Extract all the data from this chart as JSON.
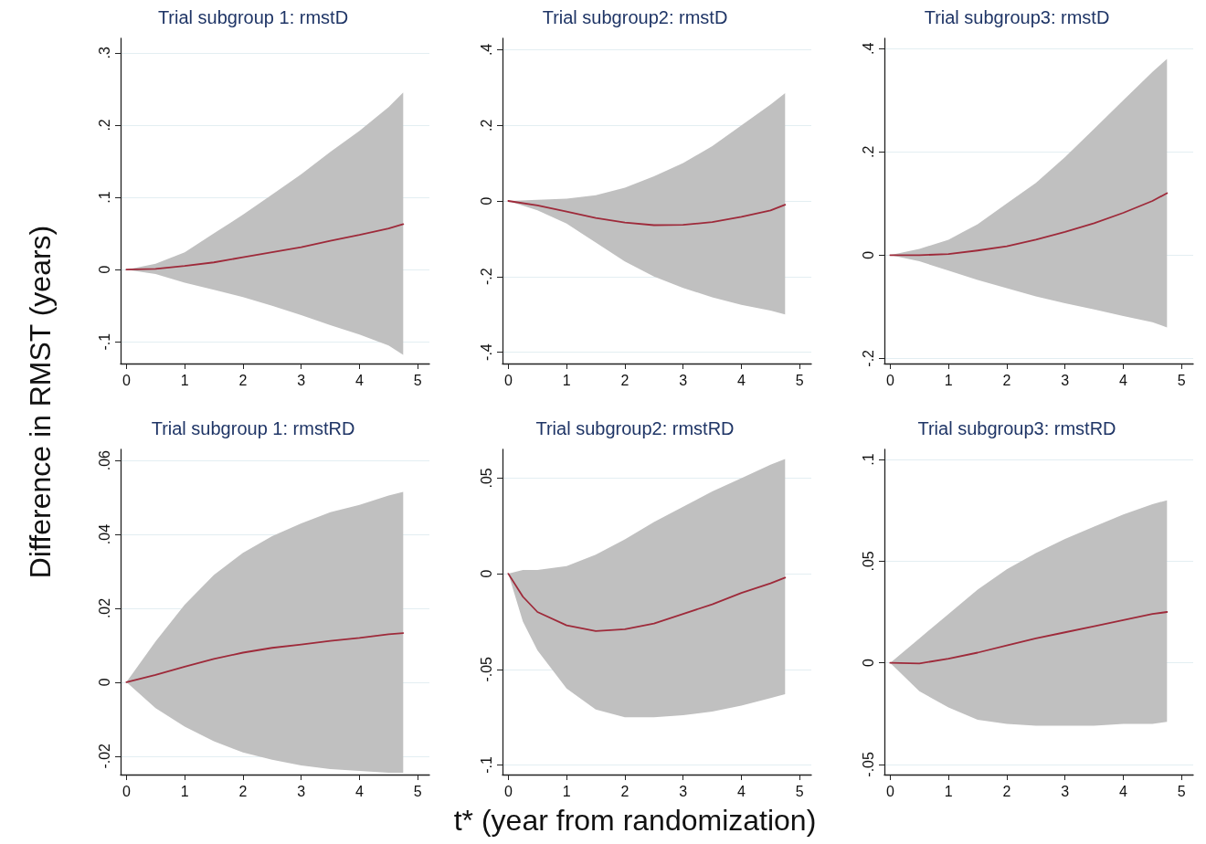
{
  "chart_data": [
    {
      "type": "line",
      "title": "Trial subgroup 1: rmstD",
      "ylabel": "Difference in RMST (years)",
      "x": [
        0,
        0.5,
        1,
        1.5,
        2,
        2.5,
        3,
        3.5,
        4,
        4.5,
        4.75
      ],
      "xlim": [
        -0.1,
        5.2
      ],
      "xticks": [
        0,
        1,
        2,
        3,
        4,
        5
      ],
      "ylim": [
        -0.13,
        0.32
      ],
      "yticks": [
        {
          "value": -0.1,
          "label": "-.1"
        },
        {
          "value": 0,
          "label": "0"
        },
        {
          "value": 0.1,
          "label": ".1"
        },
        {
          "value": 0.2,
          "label": ".2"
        },
        {
          "value": 0.3,
          "label": ".3"
        }
      ],
      "grid": "y",
      "series": [
        {
          "color": "#9e2a3a",
          "values": [
            0,
            0.001,
            0.005,
            0.01,
            0.017,
            0.024,
            0.031,
            0.04,
            0.048,
            0.057,
            0.063
          ],
          "lower": [
            0,
            -0.006,
            -0.018,
            -0.028,
            -0.038,
            -0.05,
            -0.063,
            -0.077,
            -0.09,
            -0.105,
            -0.118
          ],
          "upper": [
            0,
            0.008,
            0.024,
            0.05,
            0.076,
            0.104,
            0.132,
            0.163,
            0.192,
            0.225,
            0.245
          ]
        }
      ]
    },
    {
      "type": "line",
      "title": "Trial subgroup2: rmstD",
      "x": [
        0,
        0.5,
        1,
        1.5,
        2,
        2.5,
        3,
        3.5,
        4,
        4.5,
        4.75
      ],
      "xlim": [
        -0.1,
        5.2
      ],
      "xticks": [
        0,
        1,
        2,
        3,
        4,
        5
      ],
      "ylim": [
        -0.43,
        0.43
      ],
      "yticks": [
        {
          "value": -0.4,
          "label": "-.4"
        },
        {
          "value": -0.2,
          "label": "-.2"
        },
        {
          "value": 0,
          "label": "0"
        },
        {
          "value": 0.2,
          "label": ".2"
        },
        {
          "value": 0.4,
          "label": ".4"
        }
      ],
      "grid": "y",
      "series": [
        {
          "color": "#9e2a3a",
          "values": [
            0,
            -0.012,
            -0.028,
            -0.045,
            -0.057,
            -0.064,
            -0.063,
            -0.056,
            -0.042,
            -0.025,
            -0.01
          ],
          "lower": [
            0,
            -0.025,
            -0.06,
            -0.11,
            -0.16,
            -0.2,
            -0.23,
            -0.255,
            -0.275,
            -0.29,
            -0.3
          ],
          "upper": [
            0,
            0.003,
            0.006,
            0.015,
            0.035,
            0.065,
            0.1,
            0.145,
            0.2,
            0.255,
            0.285
          ]
        }
      ]
    },
    {
      "type": "line",
      "title": "Trial subgroup3: rmstD",
      "x": [
        0,
        0.5,
        1,
        1.5,
        2,
        2.5,
        3,
        3.5,
        4,
        4.5,
        4.75
      ],
      "xlim": [
        -0.1,
        5.2
      ],
      "xticks": [
        0,
        1,
        2,
        3,
        4,
        5
      ],
      "ylim": [
        -0.21,
        0.42
      ],
      "yticks": [
        {
          "value": -0.2,
          "label": "-.2"
        },
        {
          "value": 0,
          "label": "0"
        },
        {
          "value": 0.2,
          "label": ".2"
        },
        {
          "value": 0.4,
          "label": ".4"
        }
      ],
      "grid": "y",
      "series": [
        {
          "color": "#9e2a3a",
          "values": [
            0,
            0,
            0.002,
            0.009,
            0.017,
            0.03,
            0.045,
            0.062,
            0.082,
            0.105,
            0.12
          ],
          "lower": [
            0,
            -0.012,
            -0.03,
            -0.048,
            -0.064,
            -0.08,
            -0.093,
            -0.105,
            -0.118,
            -0.13,
            -0.14
          ],
          "upper": [
            0,
            0.012,
            0.03,
            0.06,
            0.1,
            0.14,
            0.19,
            0.245,
            0.3,
            0.355,
            0.38
          ]
        }
      ]
    },
    {
      "type": "line",
      "title": "Trial subgroup 1: rmstRD",
      "x": [
        0,
        0.5,
        1,
        1.5,
        2,
        2.5,
        3,
        3.5,
        4,
        4.5,
        4.75
      ],
      "xlim": [
        -0.1,
        5.2
      ],
      "xticks": [
        0,
        1,
        2,
        3,
        4,
        5
      ],
      "ylim": [
        -0.025,
        0.063
      ],
      "yticks": [
        {
          "value": -0.02,
          "label": "-.02"
        },
        {
          "value": 0,
          "label": "0"
        },
        {
          "value": 0.02,
          "label": ".02"
        },
        {
          "value": 0.04,
          "label": ".04"
        },
        {
          "value": 0.06,
          "label": ".06"
        }
      ],
      "grid": "y",
      "series": [
        {
          "color": "#9e2a3a",
          "values": [
            0,
            0.002,
            0.0042,
            0.0063,
            0.008,
            0.0093,
            0.0102,
            0.0112,
            0.012,
            0.013,
            0.0133
          ],
          "lower": [
            0,
            -0.007,
            -0.012,
            -0.016,
            -0.019,
            -0.021,
            -0.0225,
            -0.0235,
            -0.024,
            -0.0245,
            -0.0245
          ],
          "upper": [
            0,
            0.011,
            0.021,
            0.029,
            0.035,
            0.0395,
            0.043,
            0.046,
            0.048,
            0.0505,
            0.0515
          ]
        }
      ]
    },
    {
      "type": "line",
      "title": "Trial subgroup2: rmstRD",
      "xlabel": "t* (year from randomization)",
      "x": [
        0,
        0.25,
        0.5,
        1,
        1.5,
        2,
        2.5,
        3,
        3.5,
        4,
        4.5,
        4.75
      ],
      "xlim": [
        -0.1,
        5.2
      ],
      "xticks": [
        0,
        1,
        2,
        3,
        4,
        5
      ],
      "ylim": [
        -0.105,
        0.065
      ],
      "yticks": [
        {
          "value": -0.1,
          "label": "-.1"
        },
        {
          "value": -0.05,
          "label": "-.05"
        },
        {
          "value": 0,
          "label": "0"
        },
        {
          "value": 0.05,
          "label": ".05"
        }
      ],
      "grid": "y",
      "series": [
        {
          "color": "#9e2a3a",
          "values": [
            0,
            -0.012,
            -0.02,
            -0.027,
            -0.03,
            -0.029,
            -0.026,
            -0.021,
            -0.016,
            -0.01,
            -0.005,
            -0.002
          ],
          "lower": [
            0,
            -0.025,
            -0.04,
            -0.06,
            -0.071,
            -0.075,
            -0.075,
            -0.074,
            -0.072,
            -0.069,
            -0.065,
            -0.063
          ],
          "upper": [
            0,
            0.002,
            0.002,
            0.004,
            0.01,
            0.018,
            0.027,
            0.035,
            0.043,
            0.05,
            0.057,
            0.06
          ]
        }
      ]
    },
    {
      "type": "line",
      "title": "Trial subgroup3: rmstRD",
      "x": [
        0,
        0.5,
        1,
        1.5,
        2,
        2.5,
        3,
        3.5,
        4,
        4.5,
        4.75
      ],
      "xlim": [
        -0.1,
        5.2
      ],
      "xticks": [
        0,
        1,
        2,
        3,
        4,
        5
      ],
      "ylim": [
        -0.055,
        0.105
      ],
      "yticks": [
        {
          "value": -0.05,
          "label": "-.05"
        },
        {
          "value": 0,
          "label": "0"
        },
        {
          "value": 0.05,
          "label": ".05"
        },
        {
          "value": 0.1,
          "label": ".1"
        }
      ],
      "grid": "y",
      "series": [
        {
          "color": "#9e2a3a",
          "values": [
            0,
            -0.0003,
            0.002,
            0.005,
            0.0085,
            0.012,
            0.015,
            0.018,
            0.021,
            0.024,
            0.025
          ],
          "lower": [
            0,
            -0.014,
            -0.022,
            -0.028,
            -0.03,
            -0.031,
            -0.031,
            -0.031,
            -0.03,
            -0.03,
            -0.029
          ],
          "upper": [
            0,
            0.012,
            0.024,
            0.036,
            0.046,
            0.054,
            0.061,
            0.067,
            0.073,
            0.078,
            0.08
          ]
        }
      ]
    }
  ]
}
